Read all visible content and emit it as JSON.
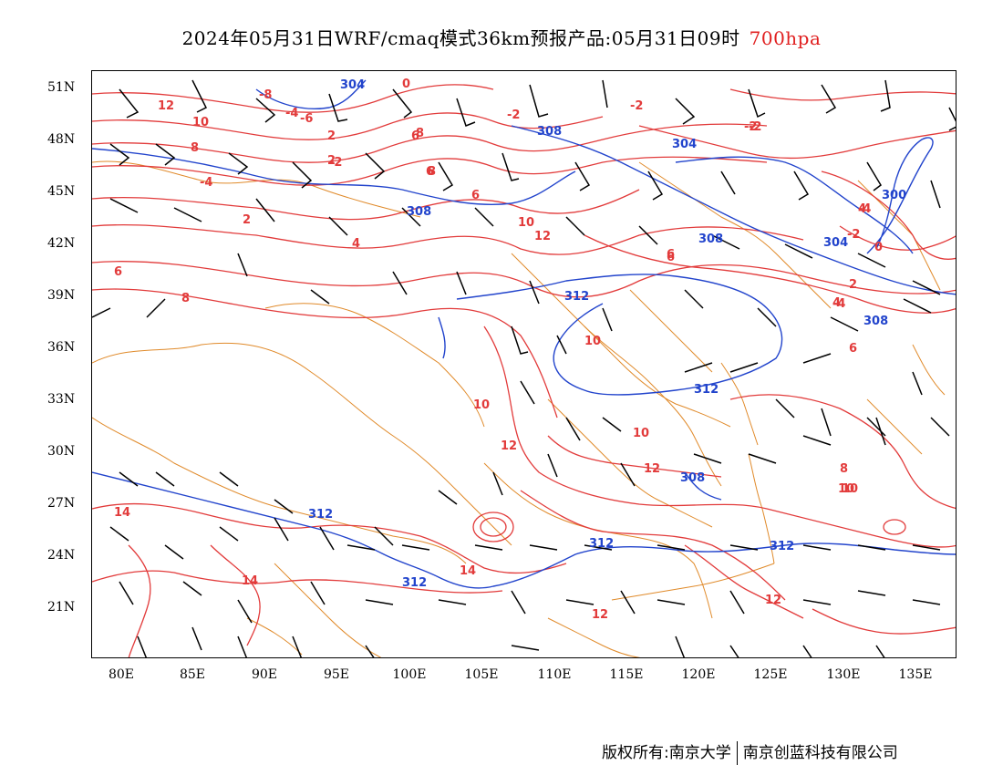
{
  "title": {
    "main": "2024年05月31日WRF/cmaq模式36km预报产品:05月31日09时",
    "level": "700hpa"
  },
  "colors": {
    "temperature": "#e23b3b",
    "geopotential": "#2244cc",
    "boundary": "#e08a2a",
    "wind": "#000000"
  },
  "lat_labels": [
    "51N",
    "48N",
    "45N",
    "42N",
    "39N",
    "36N",
    "33N",
    "30N",
    "27N",
    "24N",
    "21N"
  ],
  "lon_labels": [
    "80E",
    "85E",
    "90E",
    "95E",
    "100E",
    "105E",
    "110E",
    "115E",
    "120E",
    "125E",
    "130E",
    "135E"
  ],
  "temp_labels": [
    "12",
    "10",
    "8",
    "6",
    "4",
    "2",
    "0",
    "-2",
    "-4",
    "-6",
    "-8",
    "-2",
    "-2",
    "8",
    "6",
    "6",
    "2",
    "-2",
    "-4",
    "4",
    "8",
    "-4",
    "-2",
    "2",
    "6",
    "10",
    "12",
    "6",
    "8",
    "10",
    "10",
    "10",
    "10",
    "12",
    "12",
    "14",
    "14",
    "14",
    "12",
    "12",
    "6",
    "8",
    "10",
    "-4",
    "0",
    "-2",
    "2",
    "4",
    "6"
  ],
  "height_labels": [
    "304",
    "308",
    "308",
    "304",
    "308",
    "300",
    "312",
    "312",
    "308",
    "312",
    "312",
    "312",
    "312",
    "308",
    "304"
  ],
  "footer": {
    "copyright": "版权所有:南京大学",
    "company": "南京创蓝科技有限公司"
  }
}
